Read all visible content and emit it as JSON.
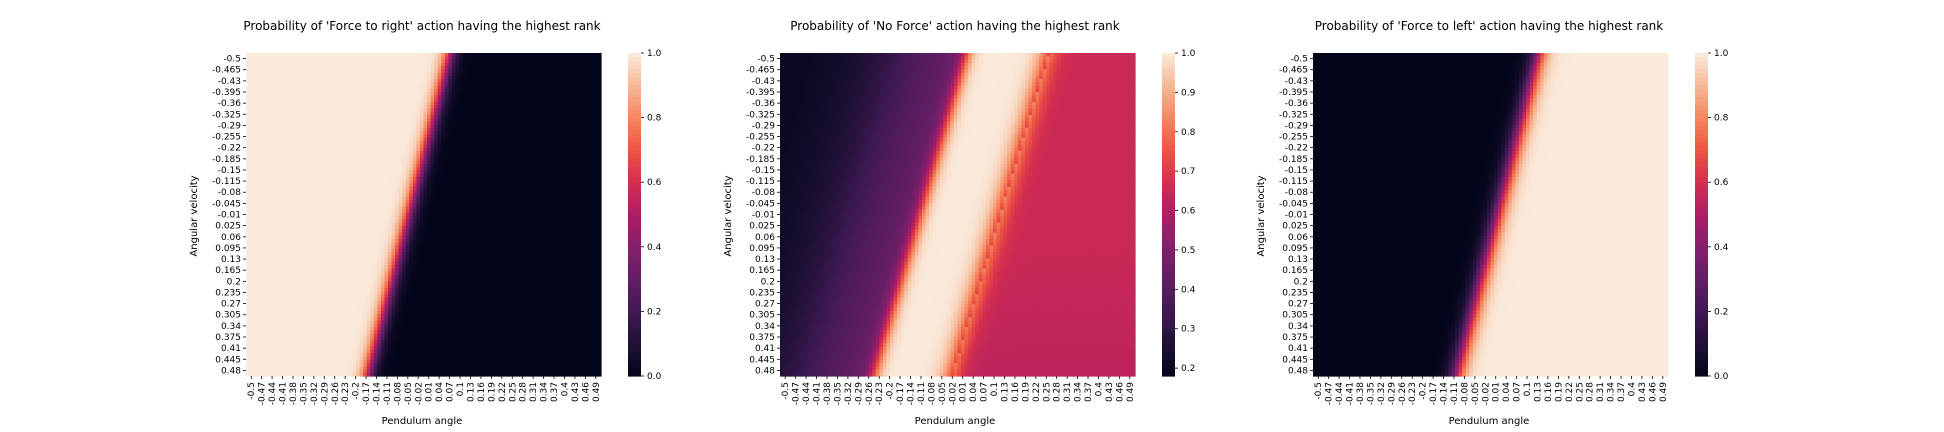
{
  "chart_data": [
    {
      "type": "heatmap",
      "title": "Probability of 'Force to right' action having the highest rank",
      "xlabel": "Pendulum angle",
      "ylabel": "Angular velocity",
      "x_ticks": [
        "-0.5",
        "-0.47",
        "-0.44",
        "-0.41",
        "-0.38",
        "-0.35",
        "-0.32",
        "-0.29",
        "-0.26",
        "-0.23",
        "-0.2",
        "-0.17",
        "-0.14",
        "-0.11",
        "-0.08",
        "-0.05",
        "-0.02",
        "0.01",
        "0.04",
        "0.07",
        "0.1",
        "0.13",
        "0.16",
        "0.19",
        "0.22",
        "0.25",
        "0.28",
        "0.31",
        "0.34",
        "0.37",
        "0.4",
        "0.43",
        "0.46",
        "0.49"
      ],
      "y_ticks": [
        "-0.5",
        "-0.465",
        "-0.43",
        "-0.395",
        "-0.36",
        "-0.325",
        "-0.29",
        "-0.255",
        "-0.22",
        "-0.185",
        "-0.15",
        "-0.115",
        "-0.08",
        "-0.045",
        "-0.01",
        "0.025",
        "0.06",
        "0.095",
        "0.13",
        "0.165",
        "0.2",
        "0.235",
        "0.27",
        "0.305",
        "0.34",
        "0.375",
        "0.41",
        "0.445",
        "0.48"
      ],
      "colorbar_ticks": [
        "0.0",
        "0.2",
        "0.4",
        "0.6",
        "0.8",
        "1.0"
      ],
      "clim": [
        0.0,
        1.0
      ],
      "colormap": "rocket",
      "pattern": "Value ≈ 1.0 left of a diagonal boundary running from angle ≈ 0.07 at velocity -0.5 to angle ≈ -0.16 at velocity 0.48, ≈ 0.0 to the right",
      "boundary_angle_at_top": 0.07,
      "boundary_angle_at_bottom": -0.16,
      "left_value": 1.0,
      "right_value": 0.0
    },
    {
      "type": "heatmap",
      "title": "Probability of 'No Force' action having the highest rank",
      "xlabel": "Pendulum angle",
      "ylabel": "Angular velocity",
      "x_ticks": [
        "-0.5",
        "-0.47",
        "-0.44",
        "-0.41",
        "-0.38",
        "-0.35",
        "-0.32",
        "-0.29",
        "-0.26",
        "-0.23",
        "-0.2",
        "-0.17",
        "-0.14",
        "-0.11",
        "-0.08",
        "-0.05",
        "-0.02",
        "0.01",
        "0.04",
        "0.07",
        "0.1",
        "0.13",
        "0.16",
        "0.19",
        "0.22",
        "0.25",
        "0.28",
        "0.31",
        "0.34",
        "0.37",
        "0.4",
        "0.43",
        "0.46",
        "0.49"
      ],
      "y_ticks": [
        "-0.5",
        "-0.465",
        "-0.43",
        "-0.395",
        "-0.36",
        "-0.325",
        "-0.29",
        "-0.255",
        "-0.22",
        "-0.185",
        "-0.15",
        "-0.115",
        "-0.08",
        "-0.045",
        "-0.01",
        "0.025",
        "0.06",
        "0.095",
        "0.13",
        "0.165",
        "0.2",
        "0.235",
        "0.27",
        "0.305",
        "0.34",
        "0.375",
        "0.41",
        "0.445",
        "0.48"
      ],
      "colorbar_ticks": [
        "0.2",
        "0.3",
        "0.4",
        "0.5",
        "0.6",
        "0.7",
        "0.8",
        "0.9",
        "1.0"
      ],
      "clim": [
        0.18,
        1.0
      ],
      "colormap": "rocket",
      "pattern": "Diagonal band ≈ 1.0 between boundaries (angle ≈ 0.02 at top / -0.24 at bottom) and (angle ≈ 0.25 at top / -0.02 at bottom); ≈ 0.2–0.45 on the left, ≈ 0.55–0.7 on the right",
      "band_left_top": 0.02,
      "band_left_bottom": -0.24,
      "band_right_top": 0.25,
      "band_right_bottom": -0.02,
      "left_value_min": 0.2,
      "left_value_max": 0.45,
      "right_value": 0.65
    },
    {
      "type": "heatmap",
      "title": "Probability of 'Force to left' action having the highest rank",
      "xlabel": "Pendulum angle",
      "ylabel": "Angular velocity",
      "x_ticks": [
        "-0.5",
        "-0.47",
        "-0.44",
        "-0.41",
        "-0.38",
        "-0.35",
        "-0.32",
        "-0.29",
        "-0.26",
        "-0.23",
        "-0.2",
        "-0.17",
        "-0.14",
        "-0.11",
        "-0.08",
        "-0.05",
        "-0.02",
        "0.01",
        "0.04",
        "0.07",
        "0.1",
        "0.13",
        "0.16",
        "0.19",
        "0.22",
        "0.25",
        "0.28",
        "0.31",
        "0.34",
        "0.37",
        "0.4",
        "0.43",
        "0.46",
        "0.49"
      ],
      "y_ticks": [
        "-0.5",
        "-0.465",
        "-0.43",
        "-0.395",
        "-0.36",
        "-0.325",
        "-0.29",
        "-0.255",
        "-0.22",
        "-0.185",
        "-0.15",
        "-0.115",
        "-0.08",
        "-0.045",
        "-0.01",
        "0.025",
        "0.06",
        "0.095",
        "0.13",
        "0.165",
        "0.2",
        "0.235",
        "0.27",
        "0.305",
        "0.34",
        "0.375",
        "0.41",
        "0.445",
        "0.48"
      ],
      "colorbar_ticks": [
        "0.0",
        "0.2",
        "0.4",
        "0.6",
        "0.8",
        "1.0"
      ],
      "clim": [
        0.0,
        1.0
      ],
      "colormap": "rocket",
      "pattern": "Value ≈ 0.0 left of a diagonal boundary running from angle ≈ 0.13 at velocity -0.5 to angle ≈ -0.1 at velocity 0.48, ≈ 1.0 to the right",
      "boundary_angle_at_top": 0.13,
      "boundary_angle_at_bottom": -0.1,
      "left_value": 0.0,
      "right_value": 1.0
    }
  ]
}
